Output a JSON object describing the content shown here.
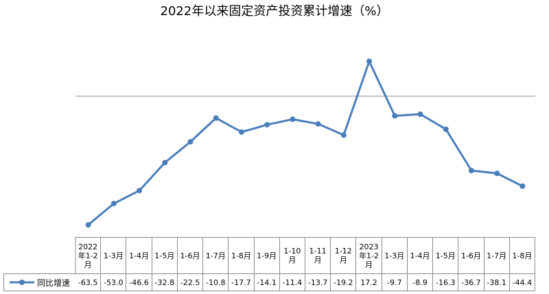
{
  "chart_data": {
    "type": "line",
    "title": "2022年以来固定资产投资累计增速（%）",
    "categories": [
      "2022年1-2月",
      "1-3月",
      "1-4月",
      "1-5月",
      "1-6月",
      "1-7月",
      "1-8月",
      "1-9月",
      "1-10月",
      "1-11月",
      "1-12月",
      "2023年1-2月",
      "1-3月",
      "1-4月",
      "1-5月",
      "1-6月",
      "1-7月",
      "1-8月"
    ],
    "series": [
      {
        "name": "同比增速",
        "color": "#4a7ebb",
        "values": [
          -63.5,
          -53.0,
          -46.6,
          -32.8,
          -22.5,
          -10.8,
          -17.7,
          -14.1,
          -11.4,
          -13.7,
          -19.2,
          17.2,
          -9.7,
          -8.9,
          -16.3,
          -36.7,
          -38.1,
          -44.4
        ],
        "value_labels": [
          "-63.5",
          "-53.0",
          "-46.6",
          "-32.8",
          "-22.5",
          "-10.8",
          "-17.7",
          "-14.1",
          "-11.4",
          "-13.7",
          "-19.2",
          "17.2",
          "-9.7",
          "-8.9",
          "-16.3",
          "-36.7",
          "-38.1",
          "-44.4"
        ]
      }
    ],
    "ylim": [
      -70,
      30
    ]
  }
}
